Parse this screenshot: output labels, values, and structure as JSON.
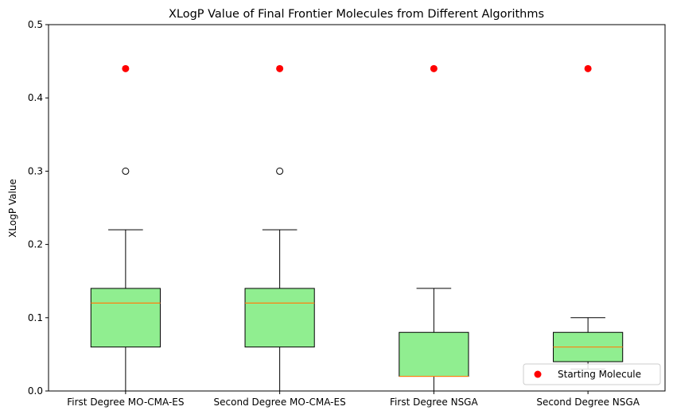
{
  "chart_data": {
    "type": "box",
    "title": "XLogP Value of Final Frontier Molecules from Different Algorithms",
    "xlabel": "",
    "ylabel": "XLogP Value",
    "ylim": [
      0,
      0.5
    ],
    "yticks": [
      0.0,
      0.1,
      0.2,
      0.3,
      0.4,
      0.5
    ],
    "ytick_labels": [
      "0.0",
      "0.1",
      "0.2",
      "0.3",
      "0.4",
      "0.5"
    ],
    "grid": false,
    "legend_position": "bottom-right",
    "legend": [
      {
        "label": "Starting Molecule",
        "color": "#ff0000",
        "marker": "circle"
      }
    ],
    "colors": {
      "box_fill": "#90ee90",
      "median": "#ff7f0e",
      "start_marker": "#ff0000"
    },
    "categories": [
      "First Degree MO-CMA-ES",
      "Second Degree MO-CMA-ES",
      "First Degree NSGA",
      "Second Degree NSGA"
    ],
    "boxes": [
      {
        "whisker_low": 0.0,
        "q1": 0.06,
        "median": 0.12,
        "q3": 0.14,
        "whisker_high": 0.22,
        "outliers": [
          0.3
        ],
        "starting_molecule": 0.44
      },
      {
        "whisker_low": 0.0,
        "q1": 0.06,
        "median": 0.12,
        "q3": 0.14,
        "whisker_high": 0.22,
        "outliers": [
          0.3
        ],
        "starting_molecule": 0.44
      },
      {
        "whisker_low": 0.0,
        "q1": 0.02,
        "median": 0.02,
        "q3": 0.08,
        "whisker_high": 0.14,
        "outliers": [],
        "starting_molecule": 0.44
      },
      {
        "whisker_low": 0.03,
        "q1": 0.04,
        "median": 0.06,
        "q3": 0.08,
        "whisker_high": 0.1,
        "outliers": [],
        "starting_molecule": 0.44
      }
    ]
  }
}
